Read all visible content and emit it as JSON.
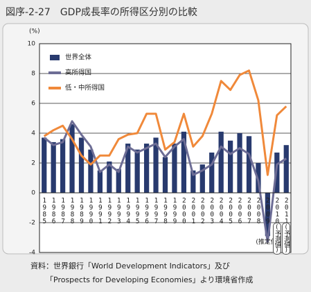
{
  "chart_data": {
    "type": "bar",
    "title": "図序-2-27　GDP成長率の所得区分別の比較",
    "y_unit": "(%)",
    "categories": [
      "1985",
      "1986",
      "1987",
      "1988",
      "1989",
      "1990",
      "1991",
      "1992",
      "1993",
      "1994",
      "1995",
      "1996",
      "1997",
      "1998",
      "1999",
      "2000",
      "2001",
      "2002",
      "2003",
      "2004",
      "2005",
      "2006",
      "2007",
      "2008",
      "2009",
      "2010",
      "2011"
    ],
    "series": [
      {
        "name": "世界全体",
        "type": "bar",
        "color": "#283a6e",
        "values": [
          3.7,
          3.4,
          3.6,
          4.6,
          3.7,
          2.9,
          1.5,
          2.1,
          1.6,
          3.3,
          2.9,
          3.3,
          3.7,
          2.4,
          3.3,
          4.1,
          1.5,
          1.9,
          2.7,
          4.1,
          3.5,
          4.0,
          3.8,
          2.0,
          -2.9,
          2.7,
          3.2
        ]
      },
      {
        "name": "高所得国",
        "type": "line",
        "color": "#6d6d95",
        "values": [
          3.7,
          3.2,
          3.4,
          4.8,
          3.9,
          3.1,
          1.4,
          1.9,
          1.4,
          3.1,
          2.7,
          3.0,
          3.3,
          2.4,
          3.1,
          3.6,
          1.2,
          1.5,
          1.9,
          3.1,
          2.6,
          3.0,
          2.6,
          0.8,
          -3.3,
          1.9,
          2.3
        ]
      },
      {
        "name": "低・中所得国",
        "type": "line",
        "color": "#f0893a",
        "values": [
          3.8,
          4.2,
          4.5,
          3.6,
          2.5,
          1.9,
          2.5,
          2.5,
          3.6,
          3.9,
          4.0,
          5.3,
          5.3,
          2.9,
          3.4,
          5.3,
          3.1,
          3.8,
          5.3,
          7.5,
          6.9,
          7.9,
          8.2,
          6.2,
          1.2,
          5.2,
          5.8
        ]
      }
    ],
    "ylim": [
      -4,
      10
    ],
    "yticks": [
      -4,
      -2,
      0,
      2,
      4,
      6,
      8,
      10
    ],
    "grid": true,
    "annotations": [
      "(推定値)",
      "(予測値)",
      "(予測値)"
    ],
    "source": [
      "資料：世界銀行「World Development Indicators」及び",
      "「Prospects for Developing Economies」より環境省作成"
    ]
  }
}
